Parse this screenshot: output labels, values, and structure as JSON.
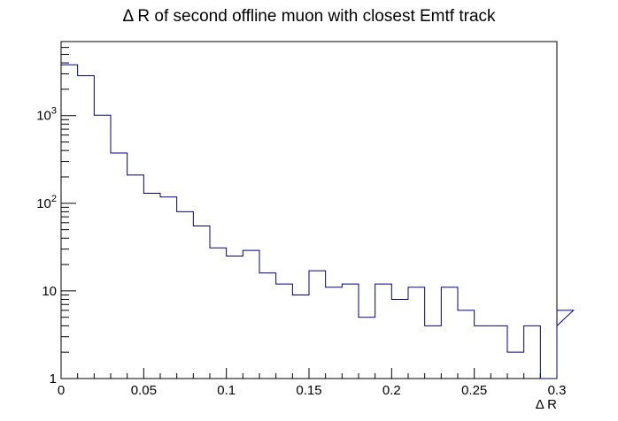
{
  "chart_data": {
    "type": "histogram",
    "title": "Δ R of second offline muon with closest Emtf track",
    "xlabel": "Δ R",
    "ylabel": "",
    "xlim": [
      0,
      0.3
    ],
    "ylim": [
      1,
      7000
    ],
    "yscale": "log",
    "grid": false,
    "legend": "none",
    "line_color": "#00007f",
    "x_ticks": [
      {
        "value": 0,
        "label": "0"
      },
      {
        "value": 0.05,
        "label": "0.05"
      },
      {
        "value": 0.1,
        "label": "0.1"
      },
      {
        "value": 0.15,
        "label": "0.15"
      },
      {
        "value": 0.2,
        "label": "0.2"
      },
      {
        "value": 0.25,
        "label": "0.25"
      },
      {
        "value": 0.3,
        "label": "0.3"
      }
    ],
    "y_ticks": [
      {
        "value": 1,
        "base": "1",
        "exp": ""
      },
      {
        "value": 10,
        "base": "10",
        "exp": ""
      },
      {
        "value": 100,
        "base": "10",
        "exp": "2"
      },
      {
        "value": 1000,
        "base": "10",
        "exp": "3"
      }
    ],
    "bin_width": 0.01,
    "bin_edges_start": 0,
    "values": [
      3800,
      2850,
      1010,
      375,
      210,
      130,
      118,
      80,
      55,
      31,
      25,
      29,
      16,
      12,
      9,
      17,
      11,
      12,
      5,
      12,
      8,
      11,
      4,
      11,
      6,
      4,
      4,
      2,
      4,
      0,
      4,
      6
    ]
  }
}
